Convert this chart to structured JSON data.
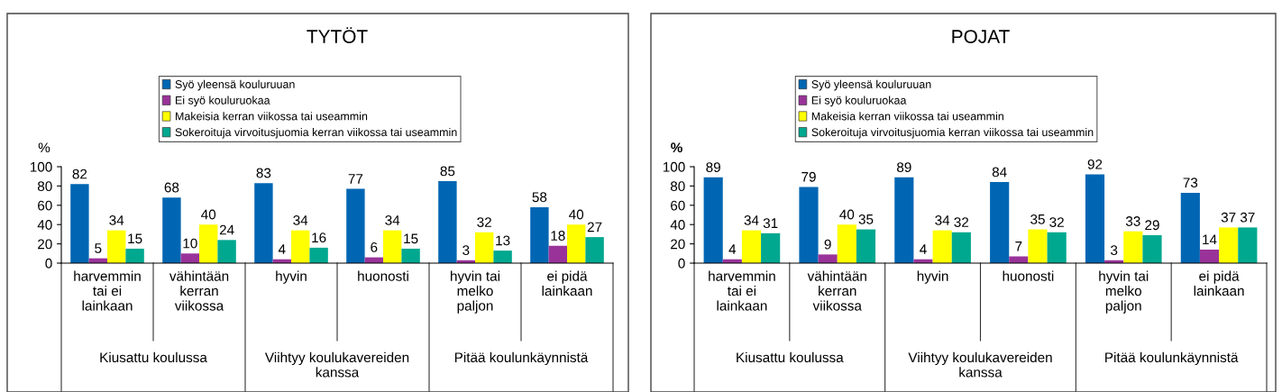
{
  "chart_data": [
    {
      "type": "bar",
      "title": "TYTÖT",
      "ylabel": "%",
      "categories": [
        "harvemmin\ntai ei\nlainkaan",
        "vähintään\nkerran\nviikossa",
        "hyvin",
        "huonosti",
        "hyvin tai\nmelko\npaljon",
        "ei pidä\nlainkaan"
      ],
      "series": [
        {
          "name": "Syö yleensä kouluruuan",
          "color": "#0066b3",
          "values": [
            82,
            68,
            83,
            77,
            85,
            58
          ]
        },
        {
          "name": "Ei syö kouluruokaa",
          "color": "#993399",
          "values": [
            5,
            10,
            4,
            6,
            3,
            18
          ]
        },
        {
          "name": "Makeisia kerran viikossa tai useammin",
          "color": "#ffff00",
          "values": [
            34,
            40,
            34,
            34,
            32,
            40
          ]
        },
        {
          "name": "Sokeroituja virvoitusjuomia kerran viikossa tai useammin",
          "color": "#00a88f",
          "values": [
            15,
            24,
            16,
            15,
            13,
            27
          ]
        }
      ],
      "ylim": [
        0,
        100
      ],
      "yticks": [
        0,
        20,
        40,
        60,
        80,
        100
      ],
      "data_labels": true,
      "legend": "top",
      "grid": false,
      "annotations": [
        "Kiusattu koulussa",
        "Viihtyy koulukavereiden\nkanssa",
        "Pitää koulunkäynnistä"
      ]
    },
    {
      "type": "bar",
      "title": "POJAT",
      "ylabel": "%",
      "categories": [
        "harvemmin\ntai ei\nlainkaan",
        "vähintään\nkerran\nviikossa",
        "hyvin",
        "huonosti",
        "hyvin tai\nmelko\npaljon",
        "ei pidä\nlainkaan"
      ],
      "series": [
        {
          "name": "Syö yleensä kouluruuan",
          "color": "#0066b3",
          "values": [
            89,
            79,
            89,
            84,
            92,
            73
          ]
        },
        {
          "name": "Ei syö kouluruokaa",
          "color": "#993399",
          "values": [
            4,
            9,
            4,
            7,
            3,
            14
          ]
        },
        {
          "name": "Makeisia kerran viikossa tai useammin",
          "color": "#ffff00",
          "values": [
            34,
            40,
            34,
            35,
            33,
            37
          ]
        },
        {
          "name": "Sokeroituja virvoitusjuomia kerran viikossa tai useammin",
          "color": "#00a88f",
          "values": [
            31,
            35,
            32,
            32,
            29,
            37
          ]
        }
      ],
      "ylim": [
        0,
        100
      ],
      "yticks": [
        0,
        20,
        40,
        60,
        80,
        100
      ],
      "data_labels": true,
      "legend": "top",
      "grid": false,
      "annotations": [
        "Kiusattu koulussa",
        "Viihtyy koulukavereiden\nkanssa",
        "Pitää koulunkäynnistä"
      ]
    }
  ]
}
